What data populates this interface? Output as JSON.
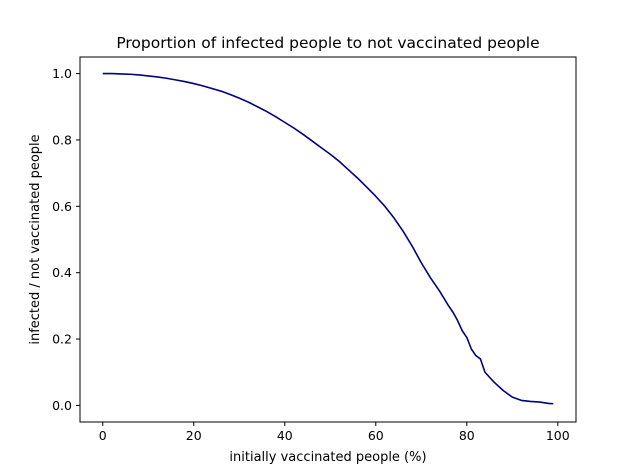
{
  "chart_data": {
    "type": "line",
    "title": "Proportion of infected people to not vaccinated people",
    "xlabel": "initially vaccinated people (%)",
    "ylabel": "infected / not vaccinated people",
    "xlim": [
      -5,
      104
    ],
    "ylim": [
      -0.05,
      1.05
    ],
    "xticks": [
      0,
      20,
      40,
      60,
      80,
      100
    ],
    "yticks": [
      0.0,
      0.2,
      0.4,
      0.6,
      0.8,
      1.0
    ],
    "xtick_labels": [
      "0",
      "20",
      "40",
      "60",
      "80",
      "100"
    ],
    "ytick_labels": [
      "0.0",
      "0.2",
      "0.4",
      "0.6",
      "0.8",
      "1.0"
    ],
    "grid": false,
    "series": [
      {
        "color": "#000080",
        "x": [
          0,
          2,
          4,
          6,
          8,
          10,
          12,
          14,
          16,
          18,
          20,
          22,
          24,
          26,
          28,
          30,
          32,
          34,
          36,
          38,
          40,
          42,
          44,
          46,
          48,
          50,
          52,
          54,
          56,
          58,
          60,
          62,
          64,
          66,
          68,
          70,
          72,
          74,
          76,
          77,
          78,
          79,
          80,
          81,
          82,
          83,
          84,
          86,
          88,
          90,
          92,
          94,
          96,
          98,
          99
        ],
        "y": [
          1.0,
          1.0,
          0.999,
          0.998,
          0.996,
          0.993,
          0.99,
          0.986,
          0.981,
          0.976,
          0.97,
          0.963,
          0.955,
          0.947,
          0.937,
          0.926,
          0.914,
          0.9,
          0.886,
          0.87,
          0.853,
          0.836,
          0.817,
          0.797,
          0.777,
          0.757,
          0.735,
          0.71,
          0.685,
          0.658,
          0.63,
          0.6,
          0.565,
          0.525,
          0.48,
          0.43,
          0.385,
          0.345,
          0.3,
          0.28,
          0.255,
          0.225,
          0.205,
          0.17,
          0.15,
          0.14,
          0.1,
          0.07,
          0.045,
          0.025,
          0.015,
          0.012,
          0.01,
          0.006,
          0.005
        ]
      }
    ]
  }
}
